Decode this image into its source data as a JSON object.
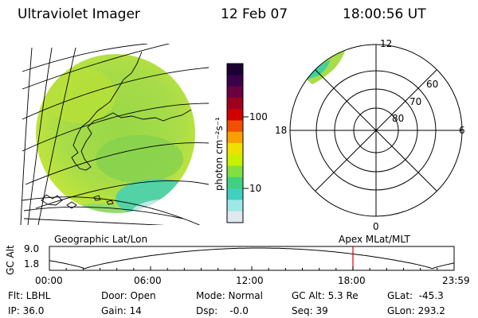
{
  "header": {
    "instrument": "Ultraviolet Imager",
    "date": "12 Feb 07",
    "time": "18:00:56 UT"
  },
  "colorbar": {
    "unit": "photon cm⁻²s⁻¹",
    "ticks": [
      "100",
      "10"
    ],
    "colors": [
      "#1a0033",
      "#3a0048",
      "#6a0040",
      "#a00020",
      "#d00000",
      "#f05000",
      "#f8a000",
      "#f0e000",
      "#c8f000",
      "#80e040",
      "#40d080",
      "#40d0c0",
      "#a0e8e8",
      "#e0e8f0"
    ]
  },
  "globe_map": {
    "caption": "Geographic Lat/Lon"
  },
  "polar_plot": {
    "caption": "Apex  MLat/MLT",
    "mlt_labels": {
      "top": "12",
      "bottom": "0",
      "left": "18",
      "right": "6"
    },
    "lat_labels": [
      "60",
      "70",
      "80"
    ]
  },
  "altitude_plot": {
    "ylabel": "GC Alt",
    "yticks": [
      "9.0",
      "1.8"
    ],
    "xticks": [
      "00:00",
      "06:00",
      "12:00",
      "18:00",
      "23:59"
    ],
    "current_marker_hours": 18.0,
    "marker_color": "#e00000"
  },
  "info": {
    "flt": "Flt: LBHL",
    "ip": "IP: 36.0",
    "door": "Door: Open",
    "gain": "Gain: 14",
    "mode": "Mode: Normal",
    "dsp": "Dsp:    -0.0",
    "gc_alt": "GC Alt: 5.3 Re",
    "seq": "Seq: 39",
    "glat": "GLat:  -45.3",
    "glon": "GLon: 293.2"
  }
}
